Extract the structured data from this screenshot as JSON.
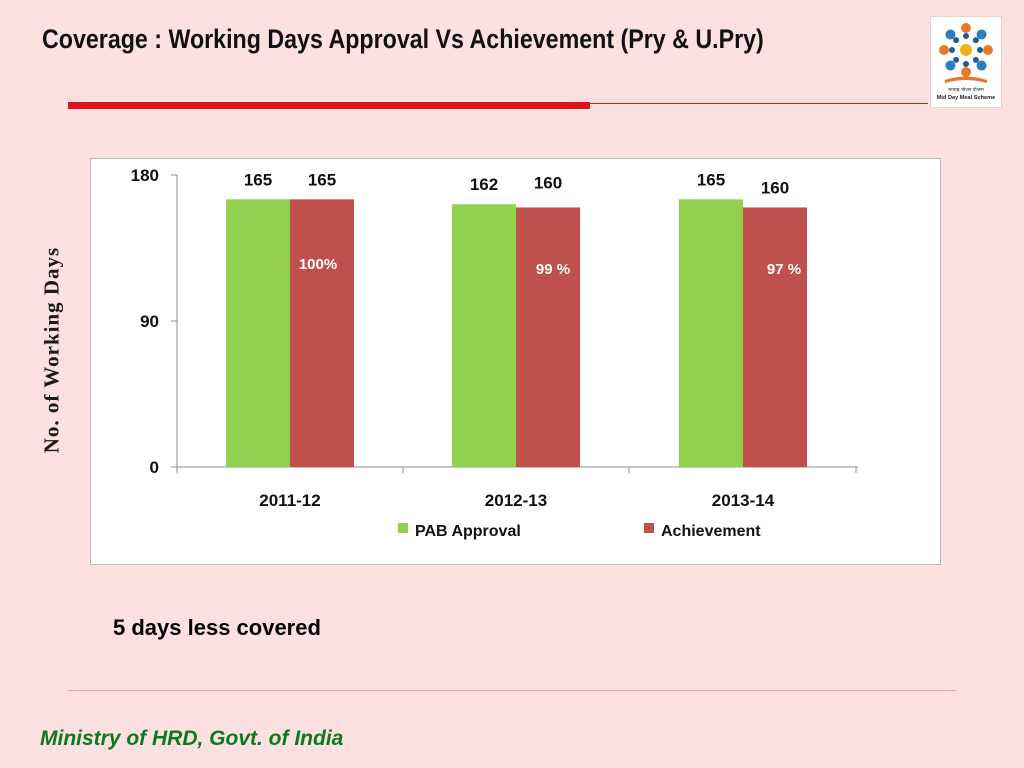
{
  "title": "Coverage : Working Days Approval Vs Achievement (Pry & U.Pry)",
  "logo": {
    "icon": "mid-day-meal-logo",
    "caption_hindi": "मध्याह्न भोजन योजना",
    "caption": "Mid Day Meal Scheme"
  },
  "colors": {
    "title_rule": "#d9141b",
    "approval": "#92d050",
    "achievement": "#c0504d",
    "footer": "#0a7a1e",
    "background": "#fde0e0"
  },
  "y_axis_title": "No. of Working Days",
  "chart_data": {
    "type": "bar",
    "categories": [
      "2011-12",
      "2012-13",
      "2013-14"
    ],
    "series": [
      {
        "name": "PAB Approval",
        "values": [
          165,
          162,
          165
        ],
        "labels": [
          "165",
          "162",
          "165"
        ]
      },
      {
        "name": "Achievement",
        "values": [
          165,
          160,
          160
        ],
        "labels": [
          "165",
          "160",
          "160"
        ]
      }
    ],
    "annotations": [
      "100%",
      "99 %",
      "97 %"
    ],
    "ylim": [
      0,
      180
    ],
    "yticks": [
      "0",
      "90",
      "180"
    ],
    "legend": "bottom",
    "grid": false
  },
  "note": "5 days less covered",
  "footer": "Ministry of HRD, Govt. of India"
}
